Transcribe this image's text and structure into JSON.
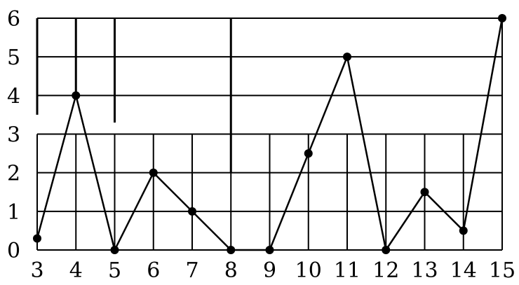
{
  "chart_data": {
    "type": "line",
    "title": "",
    "xlabel": "",
    "ylabel": "",
    "x": [
      3,
      4,
      5,
      6,
      7,
      8,
      9,
      10,
      11,
      12,
      13,
      14,
      15
    ],
    "series": [
      {
        "values": [
          0.3,
          4,
          0,
          2,
          1,
          0,
          0,
          2.5,
          5,
          0,
          1.5,
          0.5,
          6
        ]
      }
    ],
    "x_ticks": [
      "3",
      "4",
      "5",
      "6",
      "7",
      "8",
      "9",
      "10",
      "11",
      "12",
      "13",
      "14",
      "15"
    ],
    "y_ticks": [
      "0",
      "1",
      "2",
      "3",
      "4",
      "5",
      "6"
    ],
    "xlim": [
      3,
      15
    ],
    "ylim": [
      0,
      6
    ],
    "grid": true,
    "legend": "none",
    "colors": {
      "line": "#000000",
      "grid": "#000000",
      "background": "#ffffff"
    }
  }
}
